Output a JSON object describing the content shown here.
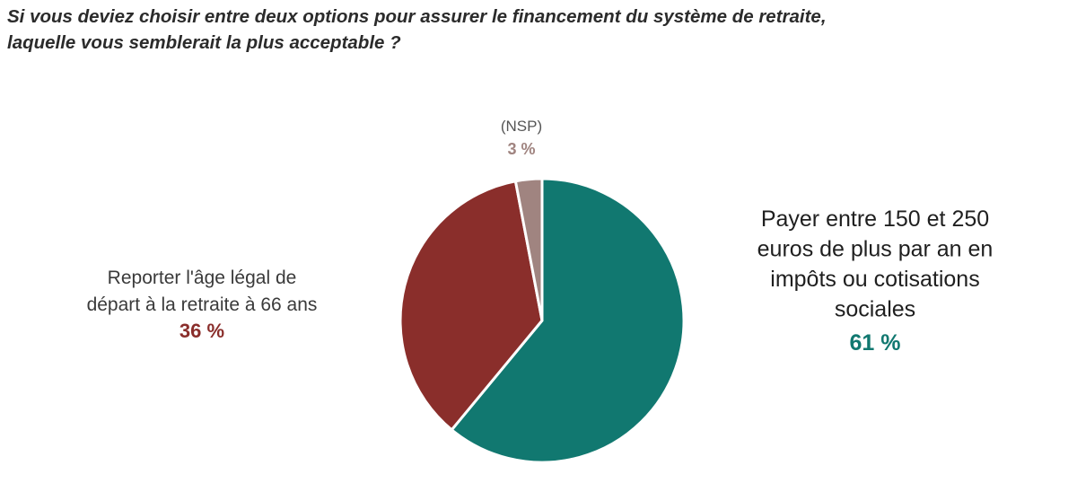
{
  "chart_data": {
    "type": "pie",
    "title": [
      "Si vous deviez choisir entre deux options pour assurer le financement du système de retraite,",
      "laquelle vous semblerait la plus acceptable ?"
    ],
    "slices": [
      {
        "label": [
          "Payer entre 150 et 250",
          "euros de plus par an en",
          "impôts ou cotisations",
          "sociales"
        ],
        "value": 61,
        "value_label": "61 %",
        "color": "#117870",
        "label_color": "#1f1f1f",
        "label_size": "large"
      },
      {
        "label": [
          "Reporter l'âge légal de",
          "départ à la retraite à 66 ans"
        ],
        "value": 36,
        "value_label": "36 %",
        "color": "#8a2e2b",
        "label_color": "#3a3a3a",
        "label_size": "medium"
      },
      {
        "label": [
          "(NSP)"
        ],
        "value": 3,
        "value_label": "3 %",
        "color": "#a08480",
        "label_color": "#555555",
        "label_size": "small"
      }
    ],
    "start": "top",
    "direction": "clockwise",
    "legend": "none"
  }
}
